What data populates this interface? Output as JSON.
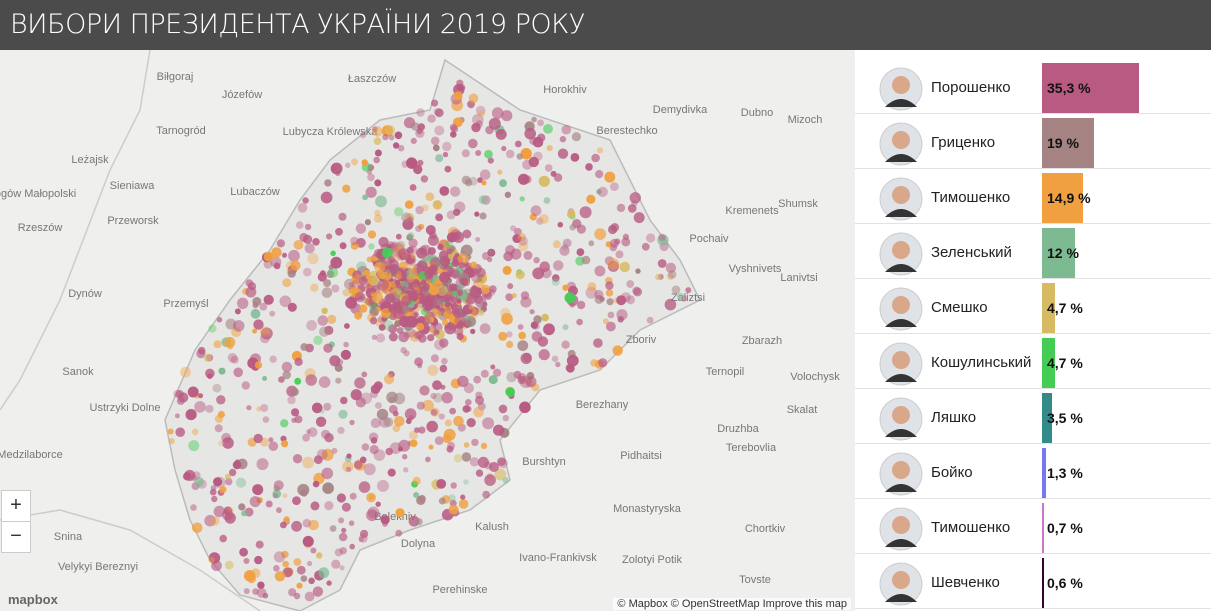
{
  "header": {
    "title": "ВИБОРИ ПРЕЗИДЕНТА УКРАЇНИ 2019 РОКУ"
  },
  "results": [
    {
      "name": "Порошенко",
      "value": 35.3,
      "value_label": "35,3 %",
      "color": "#b85a82"
    },
    {
      "name": "Гриценко",
      "value": 19,
      "value_label": "19 %",
      "color": "#a58383"
    },
    {
      "name": "Тимошенко",
      "value": 14.9,
      "value_label": "14,9 %",
      "color": "#f0a040"
    },
    {
      "name": "Зеленський",
      "value": 12,
      "value_label": "12 %",
      "color": "#7dba92"
    },
    {
      "name": "Смешко",
      "value": 4.7,
      "value_label": "4,7 %",
      "color": "#d6bb62"
    },
    {
      "name": "Кошулинський",
      "value": 4.7,
      "value_label": "4,7 %",
      "color": "#44cc55"
    },
    {
      "name": "Ляшко",
      "value": 3.5,
      "value_label": "3,5 %",
      "color": "#338a8a"
    },
    {
      "name": "Бойко",
      "value": 1.3,
      "value_label": "1,3 %",
      "color": "#7777ee"
    },
    {
      "name": "Тимошенко",
      "value": 0.7,
      "value_label": "0,7 %",
      "color": "#cc77cc"
    },
    {
      "name": "Шевченко",
      "value": 0.6,
      "value_label": "0,6 %",
      "color": "#330033"
    }
  ],
  "map": {
    "places": [
      "Biłgoraj",
      "Józefów",
      "Łaszczów",
      "Horokhiv",
      "Demydivka",
      "Tarnogród",
      "Lubycza Królewska",
      "Berestechko",
      "Dubno",
      "Mizoch",
      "Lubaczów",
      "Leżajsk",
      "Sieniawa",
      "Głogów Małopolski",
      "Przeworsk",
      "Rzeszów",
      "Kremenets",
      "Shumsk",
      "Pochaiv",
      "Vyshnivets",
      "Lanivtsi",
      "Zaliztsi",
      "Dynów",
      "Przemyśl",
      "Zboriv",
      "Zbarazh",
      "Ternopil",
      "Volochysk",
      "Sanok",
      "Ustrzyki Dolne",
      "Berezhany",
      "Skalat",
      "Druzhba",
      "Terebovlia",
      "Medzilaborce",
      "Pidhaitsi",
      "Burshtyn",
      "Monastyryska",
      "Bolekhiv",
      "Kalush",
      "Chortkiv",
      "Snina",
      "Dolyna",
      "Ivano-Frankivsk",
      "Zolotyi Potik",
      "Velykyi Bereznyi",
      "Perehinske",
      "Tovste"
    ],
    "zoom_in": "+",
    "zoom_out": "−",
    "logo": "mapbox",
    "attribution": "© Mapbox © OpenStreetMap Improve this map"
  }
}
